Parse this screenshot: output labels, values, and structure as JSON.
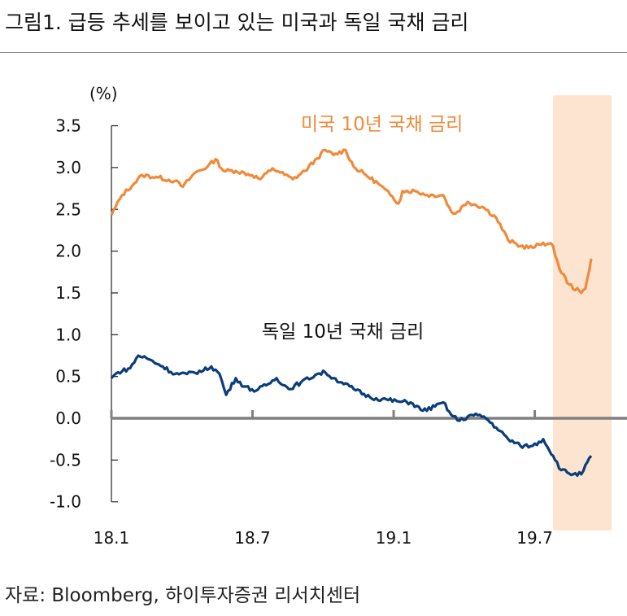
{
  "title": "그림1. 급등 추세를 보이고 있는 미국과 독일 국채 금리",
  "source": "자료: Bloomberg, 하이투자증권 리서치센터",
  "chart_data": {
    "type": "line",
    "ylabel": "(%)",
    "xlabel": "",
    "ylim": [
      -1.0,
      3.5
    ],
    "yticks": [
      "3.5",
      "3.0",
      "2.5",
      "2.0",
      "1.5",
      "1.0",
      "0.5",
      "0.0",
      "-0.5",
      "-1.0"
    ],
    "ytick_values": [
      3.5,
      3.0,
      2.5,
      2.0,
      1.5,
      1.0,
      0.5,
      0.0,
      -0.5,
      -1.0
    ],
    "x_unit": "months since 2018-01",
    "xlim": [
      0,
      22
    ],
    "xticks": [
      "18.1",
      "18.7",
      "19.1",
      "19.7"
    ],
    "xtick_values": [
      0,
      6,
      12,
      18
    ],
    "highlight": {
      "x_range": [
        18.78,
        21.27
      ],
      "color": "#fce4d0"
    },
    "grid": false,
    "series": [
      {
        "name": "미국 10년 국채 금리",
        "color": "#f08a3a",
        "x": [
          0,
          0.45,
          0.97,
          1.31,
          2.0,
          2.7,
          3.04,
          3.56,
          4.08,
          4.43,
          4.77,
          5.29,
          5.98,
          6.33,
          6.85,
          7.19,
          7.71,
          8.23,
          8.75,
          9.09,
          9.44,
          9.96,
          10.3,
          10.82,
          11.34,
          11.86,
          12.21,
          12.38,
          12.9,
          13.42,
          14.11,
          14.45,
          14.63,
          15.15,
          15.84,
          16.36,
          16.87,
          17.39,
          17.91,
          18.36,
          18.78,
          19.05,
          19.46,
          19.98,
          20.15,
          20.4
        ],
        "y": [
          2.43,
          2.67,
          2.81,
          2.91,
          2.88,
          2.84,
          2.77,
          2.94,
          3.01,
          3.1,
          2.96,
          2.96,
          2.91,
          2.86,
          2.99,
          2.94,
          2.86,
          2.96,
          3.11,
          3.21,
          3.15,
          3.21,
          3.01,
          2.91,
          2.81,
          2.67,
          2.57,
          2.72,
          2.72,
          2.67,
          2.67,
          2.47,
          2.45,
          2.59,
          2.52,
          2.4,
          2.13,
          2.06,
          2.04,
          2.1,
          2.06,
          1.79,
          1.6,
          1.5,
          1.55,
          1.91
        ]
      },
      {
        "name": "독일 10년 국채 금리",
        "color": "#0b3d7a",
        "x": [
          0,
          0.28,
          0.8,
          1.14,
          1.49,
          2.18,
          2.7,
          3.22,
          3.91,
          4.25,
          4.6,
          4.88,
          5.29,
          5.64,
          6.15,
          6.67,
          7.02,
          7.54,
          8.06,
          8.75,
          9.09,
          9.44,
          9.79,
          10.3,
          11.0,
          11.51,
          12.21,
          12.72,
          13.24,
          13.76,
          14.11,
          14.45,
          14.8,
          15.32,
          15.84,
          16.36,
          16.87,
          17.39,
          17.91,
          18.36,
          18.78,
          19.12,
          19.64,
          19.98,
          20.4
        ],
        "y": [
          0.48,
          0.55,
          0.6,
          0.75,
          0.72,
          0.62,
          0.53,
          0.53,
          0.57,
          0.62,
          0.53,
          0.28,
          0.48,
          0.38,
          0.33,
          0.41,
          0.48,
          0.35,
          0.43,
          0.53,
          0.55,
          0.48,
          0.43,
          0.35,
          0.25,
          0.23,
          0.2,
          0.19,
          0.09,
          0.14,
          0.19,
          0.04,
          -0.03,
          0.04,
          0.02,
          -0.11,
          -0.25,
          -0.33,
          -0.33,
          -0.25,
          -0.45,
          -0.62,
          -0.67,
          -0.67,
          -0.45
        ]
      }
    ]
  }
}
